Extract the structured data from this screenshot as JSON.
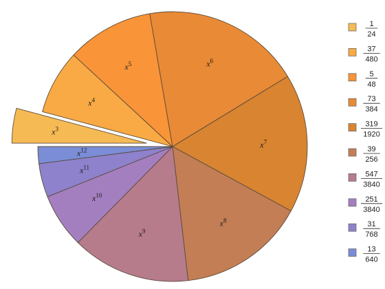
{
  "chart_data": {
    "type": "pie",
    "start_angle_deg": 180,
    "direction": "clockwise",
    "exploded": [
      0
    ],
    "slices": [
      {
        "label": "x3",
        "base": "x",
        "exp": "3",
        "num": "1",
        "den": "24",
        "value": 0.041667,
        "color": "#F6BA55"
      },
      {
        "label": "x4",
        "base": "x",
        "exp": "4",
        "num": "37",
        "den": "480",
        "value": 0.077083,
        "color": "#F9AA44"
      },
      {
        "label": "x5",
        "base": "x",
        "exp": "5",
        "num": "5",
        "den": "48",
        "value": 0.104167,
        "color": "#F99438"
      },
      {
        "label": "x6",
        "base": "x",
        "exp": "6",
        "num": "73",
        "den": "384",
        "value": 0.190104,
        "color": "#E98A36"
      },
      {
        "label": "x7",
        "base": "x",
        "exp": "7",
        "num": "319",
        "den": "1920",
        "value": 0.166146,
        "color": "#D98431"
      },
      {
        "label": "x8",
        "base": "x",
        "exp": "8",
        "num": "39",
        "den": "256",
        "value": 0.152344,
        "color": "#C37E55"
      },
      {
        "label": "x9",
        "base": "x",
        "exp": "9",
        "num": "547",
        "den": "3840",
        "value": 0.142448,
        "color": "#B77C8C"
      },
      {
        "label": "x10",
        "base": "x",
        "exp": "10",
        "num": "251",
        "den": "3840",
        "value": 0.065365,
        "color": "#A47FC0"
      },
      {
        "label": "x11",
        "base": "x",
        "exp": "11",
        "num": "31",
        "den": "768",
        "value": 0.040365,
        "color": "#8E82CC"
      },
      {
        "label": "x12",
        "base": "x",
        "exp": "12",
        "num": "13",
        "den": "640",
        "value": 0.020313,
        "color": "#7A8DD6"
      }
    ],
    "legend": {
      "position": "right"
    }
  }
}
